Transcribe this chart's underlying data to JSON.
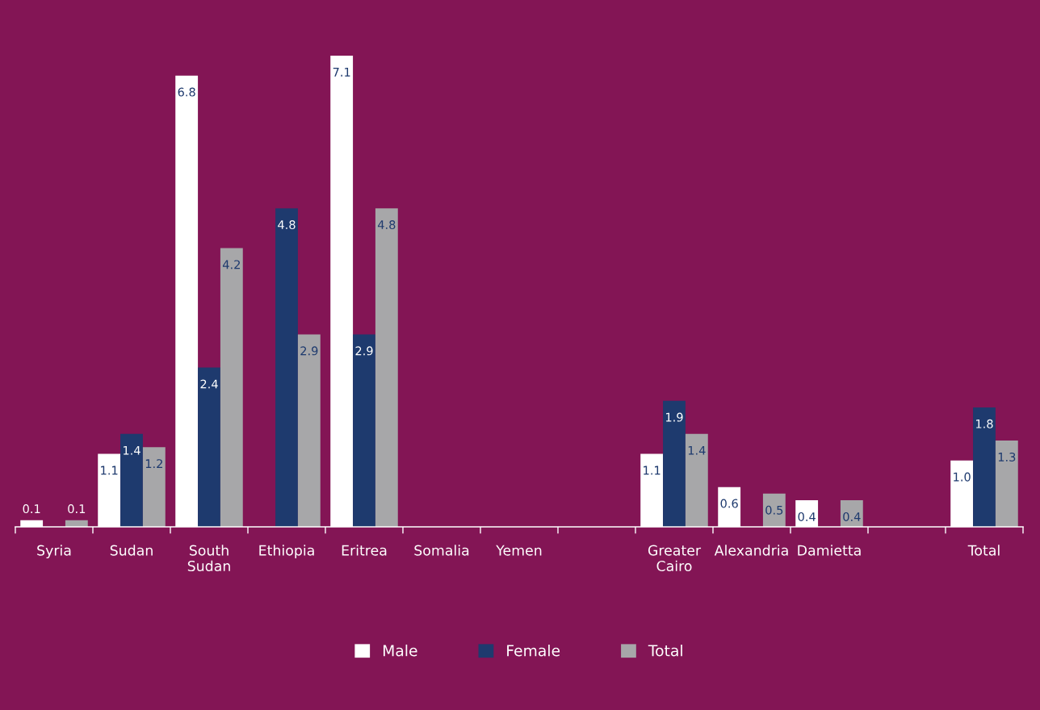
{
  "chart_data": {
    "type": "bar",
    "categories": [
      "Syria",
      "Sudan",
      "South Sudan",
      "Ethiopia",
      "Eritrea",
      "Somalia",
      "Yemen",
      null,
      "Greater Cairo",
      "Alexandria",
      "Damietta",
      null,
      "Total"
    ],
    "series": [
      {
        "name": "Male",
        "color": "#ffffff",
        "values": [
          0.1,
          1.1,
          6.8,
          null,
          7.1,
          null,
          null,
          null,
          1.1,
          0.6,
          0.4,
          null,
          1.0
        ],
        "value_labels": [
          "0.1",
          "1.1",
          "6.8",
          null,
          "7.1",
          null,
          null,
          null,
          "1.1",
          "0.6",
          "0.4",
          null,
          "1.0"
        ]
      },
      {
        "name": "Female",
        "color": "#1e3a6e",
        "values": [
          null,
          1.4,
          2.4,
          4.8,
          2.9,
          null,
          null,
          null,
          1.9,
          null,
          null,
          null,
          1.8
        ],
        "value_labels": [
          null,
          "1.4",
          "2.4",
          "4.8",
          "2.9",
          null,
          null,
          null,
          "1.9",
          null,
          null,
          null,
          "1.8"
        ]
      },
      {
        "name": "Total",
        "color": "#a7a7a9",
        "values": [
          0.1,
          1.2,
          4.2,
          2.9,
          4.8,
          null,
          null,
          null,
          1.4,
          0.5,
          0.4,
          null,
          1.3
        ],
        "value_labels": [
          "0.1",
          "1.2",
          "4.2",
          "2.9",
          "4.8",
          null,
          null,
          null,
          "1.4",
          "0.5",
          "0.4",
          null,
          "1.3"
        ]
      }
    ],
    "grid": false,
    "legend": "bottom"
  }
}
